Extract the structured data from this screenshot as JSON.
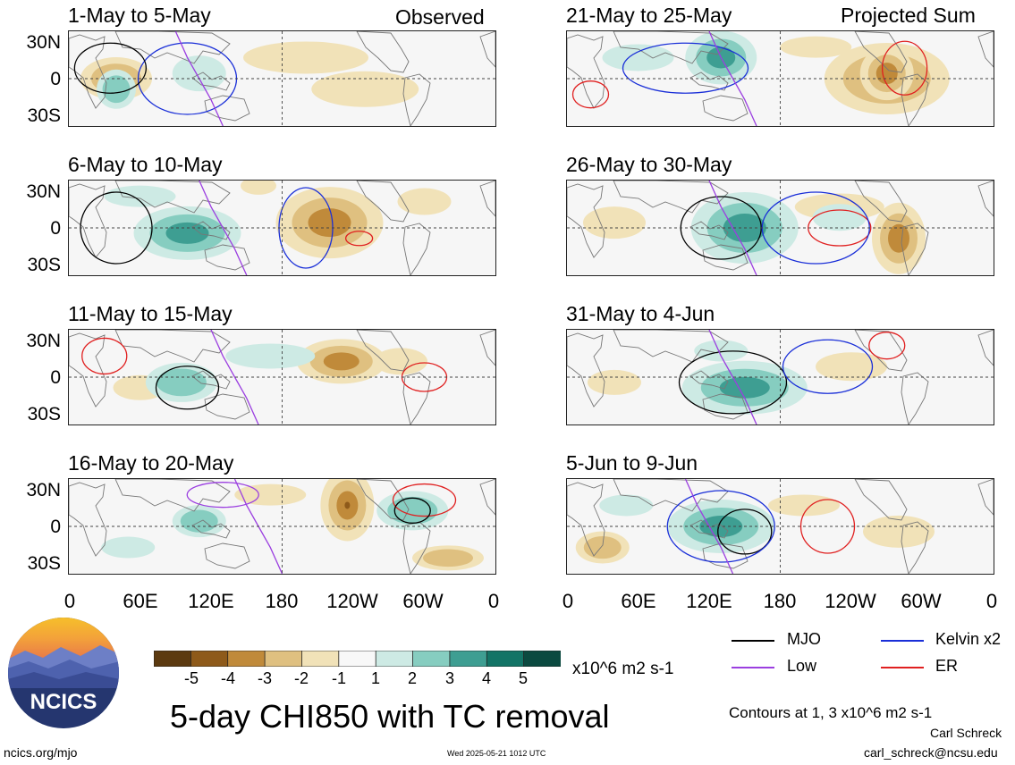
{
  "header": {
    "left_label": "Observed",
    "right_label": "Projected Sum"
  },
  "panels": [
    {
      "title": "1-May to 5-May",
      "col": "left"
    },
    {
      "title": "6-May to 10-May",
      "col": "left"
    },
    {
      "title": "11-May to 15-May",
      "col": "left"
    },
    {
      "title": "16-May to 20-May",
      "col": "left"
    },
    {
      "title": "21-May to 25-May",
      "col": "right"
    },
    {
      "title": "26-May to 30-May",
      "col": "right"
    },
    {
      "title": "31-May to 4-Jun",
      "col": "right"
    },
    {
      "title": "5-Jun to 9-Jun",
      "col": "right"
    }
  ],
  "axes": {
    "y_ticks": [
      "30N",
      "0",
      "30S"
    ],
    "x_ticks": [
      "0",
      "60E",
      "120E",
      "180",
      "120W",
      "60W",
      "0"
    ]
  },
  "colorbar": {
    "labels": [
      "-5",
      "-4",
      "-3",
      "-2",
      "-1",
      "1",
      "2",
      "3",
      "4",
      "5"
    ],
    "colors": [
      "#5c3a10",
      "#8e5a1a",
      "#c08a3a",
      "#dfc080",
      "#f1e2b8",
      "#f8f8f8",
      "#cdeae4",
      "#86cdc0",
      "#3e9e92",
      "#137466",
      "#0b4a40"
    ],
    "units": "x10^6 m2 s-1"
  },
  "legend": {
    "items": [
      {
        "label": "MJO",
        "color": "#000000"
      },
      {
        "label": "Kelvin x2",
        "color": "#1a2fd8"
      },
      {
        "label": "Low",
        "color": "#9b3fe0"
      },
      {
        "label": "ER",
        "color": "#e02020"
      }
    ],
    "contours_note": "Contours at 1, 3 x10^6 m2 s-1"
  },
  "logo": {
    "text": "NCICS"
  },
  "footer": {
    "title": "5-day CHI850 with TC removal",
    "url": "ncics.org/mjo",
    "timestamp": "Wed 2025-05-21 1012 UTC",
    "author": "Carl Schreck",
    "email": "carl_schreck@ncsu.edu"
  }
}
